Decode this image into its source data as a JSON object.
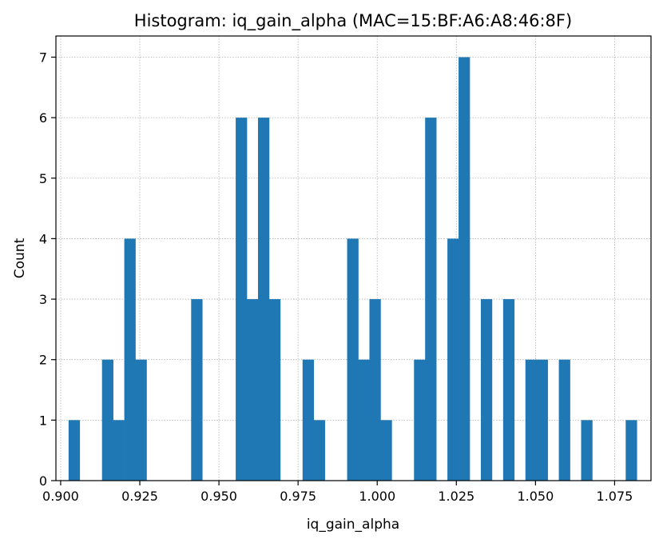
{
  "chart_data": {
    "type": "bar",
    "title": "Histogram: iq_gain_alpha (MAC=15:BF:A6:A8:46:8F)",
    "xlabel": "iq_gain_alpha",
    "ylabel": "Count",
    "xlim": [
      0.8985,
      1.0865
    ],
    "ylim": [
      0,
      7.35
    ],
    "x_ticks": [
      0.9,
      0.925,
      0.95,
      0.975,
      1.0,
      1.025,
      1.05,
      1.075
    ],
    "x_tick_labels": [
      "0.900",
      "0.925",
      "0.950",
      "0.975",
      "1.000",
      "1.025",
      "1.050",
      "1.075"
    ],
    "y_ticks": [
      0,
      1,
      2,
      3,
      4,
      5,
      6,
      7
    ],
    "y_tick_labels": [
      "0",
      "1",
      "2",
      "3",
      "4",
      "5",
      "6",
      "7"
    ],
    "grid": true,
    "bar_color": "#1f77b4",
    "bin_start": 0.9025,
    "bin_width": 0.00352,
    "values": [
      1,
      0,
      0,
      2,
      1,
      4,
      2,
      0,
      0,
      0,
      0,
      3,
      0,
      0,
      0,
      6,
      3,
      6,
      3,
      0,
      0,
      2,
      1,
      0,
      0,
      4,
      2,
      3,
      1,
      0,
      0,
      2,
      6,
      0,
      4,
      7,
      0,
      3,
      0,
      3,
      0,
      2,
      2,
      0,
      2,
      0,
      1,
      0,
      0,
      0,
      1
    ]
  }
}
